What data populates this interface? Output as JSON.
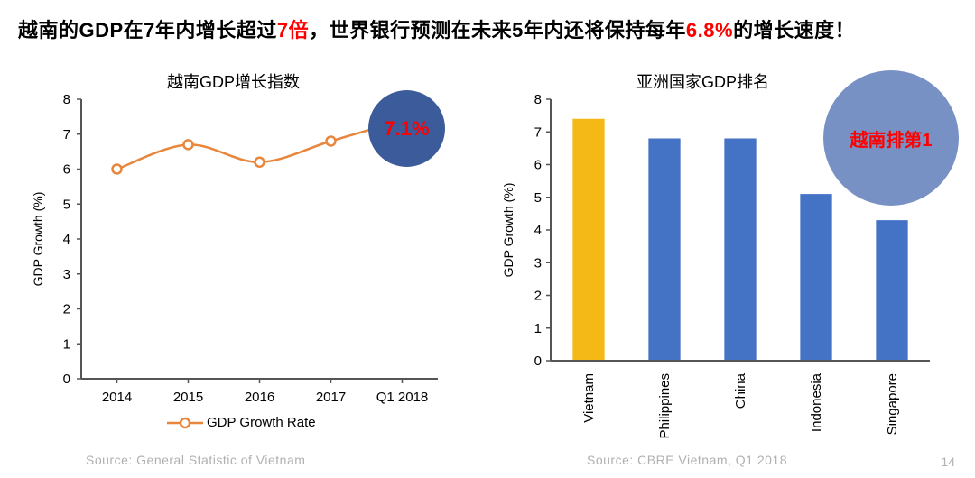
{
  "headline": {
    "p1": "越南的GDP在7年内增长超过",
    "red1": "7倍",
    "p2": "，世界银行预测在未来5年内还将保持每年",
    "red2": "6.8%",
    "p3": "的增长速度！"
  },
  "line_chart": {
    "title": "越南GDP增长指数",
    "type": "line",
    "x_labels": [
      "2014",
      "2015",
      "2016",
      "2017",
      "Q1 2018"
    ],
    "values": [
      6.0,
      6.7,
      6.2,
      6.8,
      7.4
    ],
    "line_color": "#e8863c",
    "marker_fill": "#ffffff",
    "marker_stroke": "#e8863c",
    "marker_radius": 5,
    "line_width": 2.5,
    "y_label": "GDP Growth (%)",
    "y_label_fontsize": 14,
    "ylim": [
      0,
      8
    ],
    "ytick_step": 1,
    "axis_color": "#555555",
    "tick_fontsize": 15,
    "legend_label": "GDP Growth Rate",
    "legend_color": "#e8863c",
    "source": "Source: General Statistic of Vietnam",
    "callout": {
      "diameter": 85,
      "bg": "#3b5b9a",
      "text": "7.1%",
      "text_color": "#ff0000",
      "fontsize": 22
    }
  },
  "bar_chart": {
    "title": "亚洲国家GDP排名",
    "type": "bar",
    "categories": [
      "Vietnam",
      "Philippines",
      "China",
      "Indonesia",
      "Singapore"
    ],
    "values": [
      7.4,
      6.8,
      6.8,
      5.1,
      4.3
    ],
    "bar_colors": [
      "#f4b817",
      "#4472c4",
      "#4472c4",
      "#4472c4",
      "#4472c4"
    ],
    "y_label": "GDP Growth (%)",
    "y_label_fontsize": 14,
    "ylim": [
      0,
      8
    ],
    "ytick_step": 1,
    "axis_color": "#555555",
    "tick_fontsize": 15,
    "bar_width": 0.42,
    "source": "Source: CBRE Vietnam, Q1 2018",
    "callout": {
      "diameter": 150,
      "bg": "#7891c5",
      "text": "越南排第1",
      "text_color": "#ff0000",
      "fontsize": 20
    }
  },
  "page_number": "14"
}
